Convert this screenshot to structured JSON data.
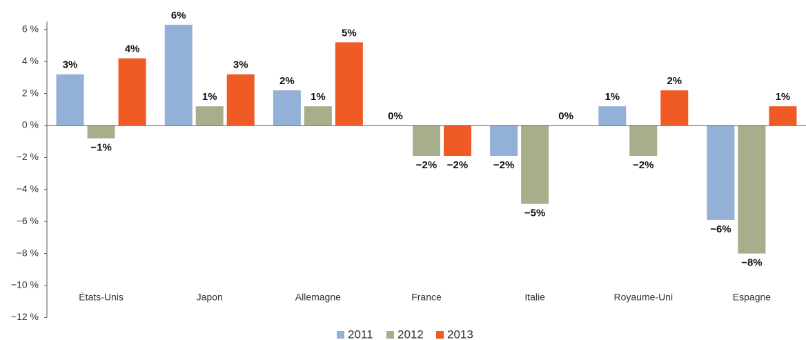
{
  "chart_data": {
    "type": "bar",
    "categories": [
      "États-Unis",
      "Japon",
      "Allemagne",
      "France",
      "Italie",
      "Royaume-Uni",
      "Espagne"
    ],
    "series": [
      {
        "name": "2011",
        "color": "#93b0d6",
        "values": [
          3.2,
          6.3,
          2.2,
          0,
          -1.9,
          1.2,
          -5.9
        ],
        "value_labels": [
          "3%",
          "6%",
          "2%",
          "0%",
          "−2%",
          "1%",
          "−6%"
        ]
      },
      {
        "name": "2012",
        "color": "#a8ae8a",
        "values": [
          -0.8,
          1.2,
          1.2,
          -1.9,
          -4.9,
          -1.9,
          -8
        ],
        "value_labels": [
          "−1%",
          "1%",
          "1%",
          "−2%",
          "−5%",
          "−2%",
          "−8%"
        ]
      },
      {
        "name": "2013",
        "color": "#f05a24",
        "values": [
          4.2,
          3.2,
          5.2,
          -1.9,
          0,
          2.2,
          1.2
        ],
        "value_labels": [
          "4%",
          "3%",
          "5%",
          "−2%",
          "0%",
          "2%",
          "1%"
        ]
      }
    ],
    "ylim": [
      -12,
      6.5
    ],
    "yticks": [
      {
        "value": 6,
        "label": "6 %"
      },
      {
        "value": 4,
        "label": "4 %"
      },
      {
        "value": 2,
        "label": "2 %"
      },
      {
        "value": 0,
        "label": "0 %"
      },
      {
        "value": -2,
        "label": "−2 %"
      },
      {
        "value": -4,
        "label": "−4 %"
      },
      {
        "value": -6,
        "label": "−6 %"
      },
      {
        "value": -8,
        "label": "−8 %"
      },
      {
        "value": -10,
        "label": "−10 %"
      },
      {
        "value": -12,
        "label": "−12 %"
      }
    ],
    "legend": "bottom"
  }
}
